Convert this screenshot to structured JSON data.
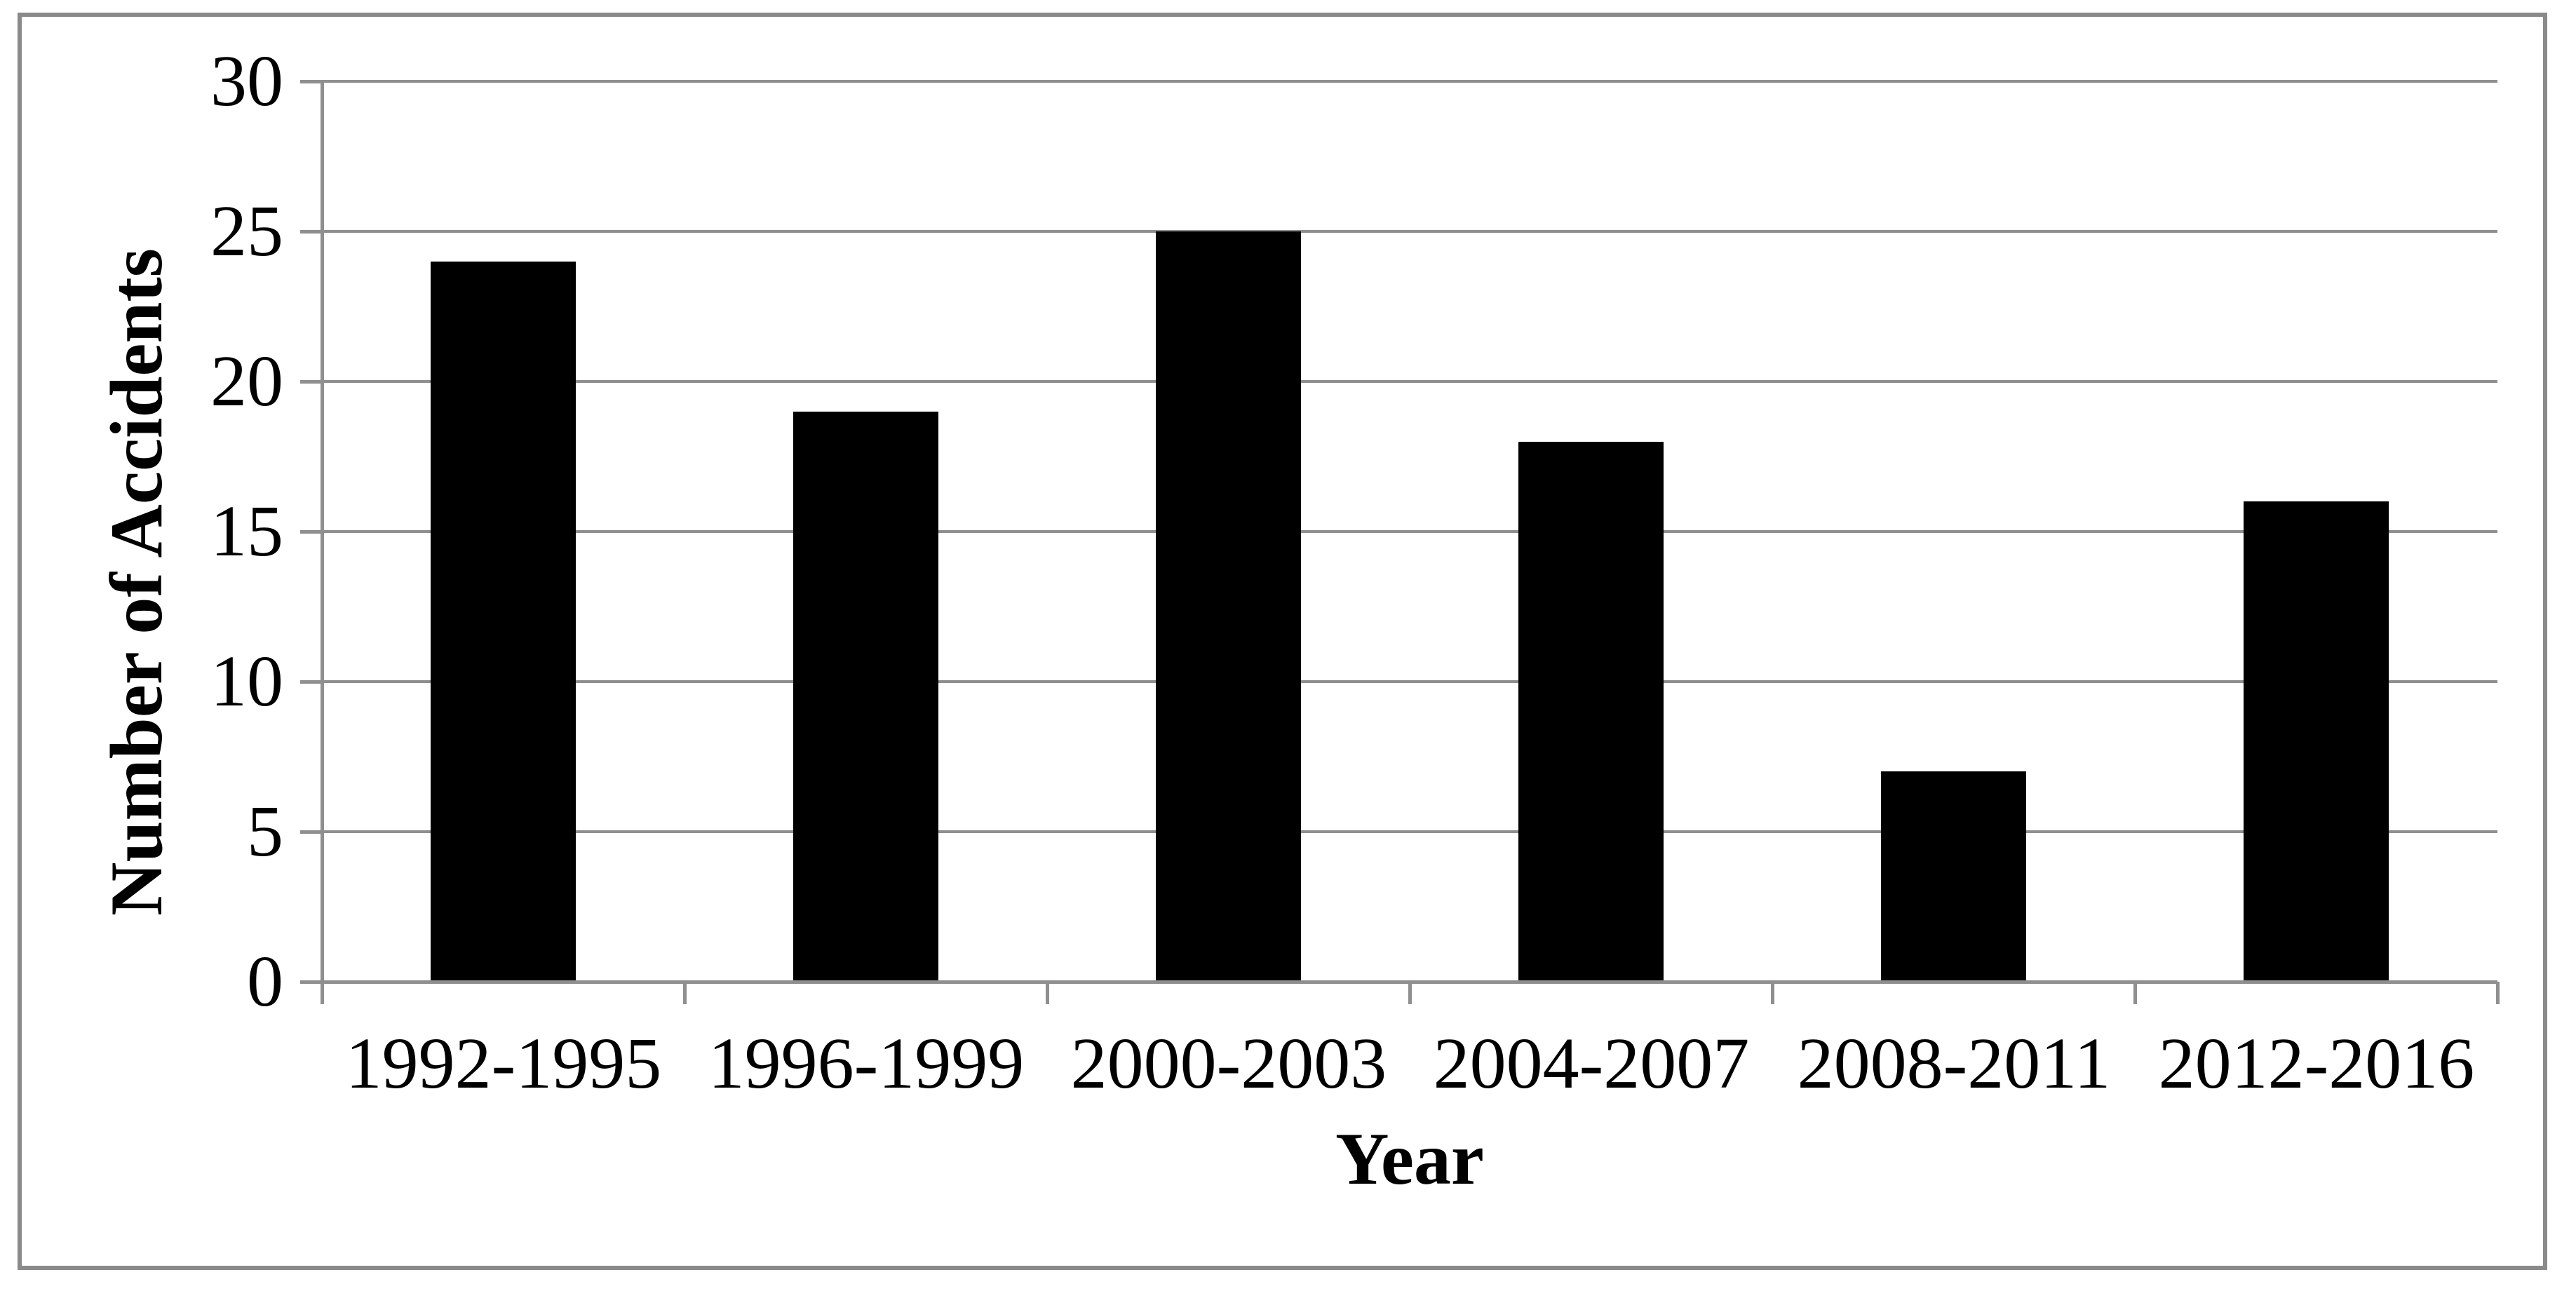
{
  "figure": {
    "background_color": "#ffffff",
    "border_color": "#8a8a8a",
    "line_color": "#8f8f8f",
    "bar_color": "#000000",
    "text_color": "#000000"
  },
  "chart_data": {
    "type": "bar",
    "categories": [
      "1992-1995",
      "1996-1999",
      "2000-2003",
      "2004-2007",
      "2008-2011",
      "2012-2016"
    ],
    "values": [
      24,
      19,
      25,
      18,
      7,
      16
    ],
    "title": "",
    "xlabel": "Year",
    "ylabel": "Number of Accidents",
    "ylim": [
      0,
      30
    ],
    "yticks": [
      0,
      5,
      10,
      15,
      20,
      25,
      30
    ],
    "grid": "horizontal",
    "legend": "none",
    "series_name": "Number of Accidents"
  }
}
